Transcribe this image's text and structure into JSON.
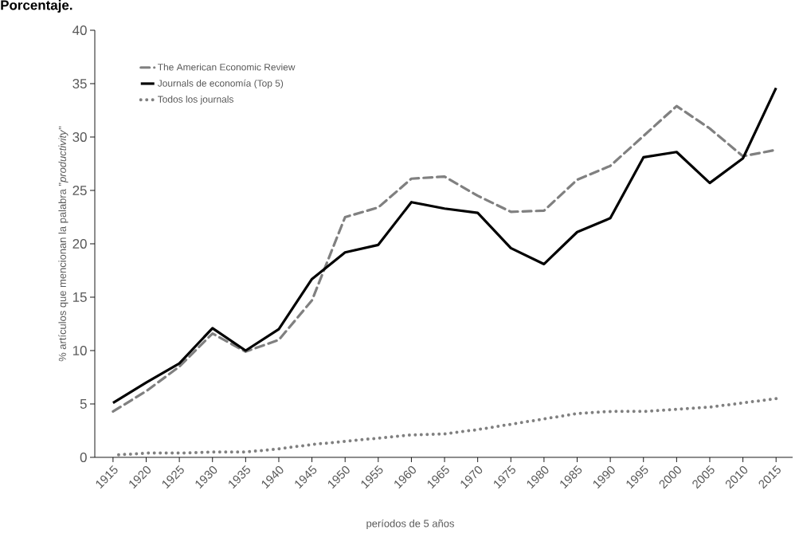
{
  "chart_data": {
    "type": "line",
    "title": "Porcentaje.",
    "xlabel": "períodos de 5 años",
    "ylabel": "% artículos que mencionan la palabra \"*productivity*\"",
    "categories": [
      "1915",
      "1920",
      "1925",
      "1930",
      "1935",
      "1940",
      "1945",
      "1950",
      "1955",
      "1960",
      "1965",
      "1970",
      "1975",
      "1980",
      "1985",
      "1990",
      "1995",
      "2000",
      "2005",
      "2010",
      "2015"
    ],
    "series": [
      {
        "name": "The American Economic Review",
        "color": "#808080",
        "line_style": "dashed",
        "values": [
          4.3,
          6.2,
          8.5,
          11.6,
          9.9,
          11.0,
          14.7,
          22.5,
          23.4,
          26.1,
          26.3,
          24.5,
          23.0,
          23.1,
          26.0,
          27.3,
          30.1,
          32.9,
          30.8,
          28.2,
          28.8
        ]
      },
      {
        "name": "Journals de economía (Top 5)",
        "color": "#000000",
        "line_style": "solid",
        "values": [
          5.1,
          7.0,
          8.8,
          12.1,
          10.0,
          12.0,
          16.7,
          19.2,
          19.9,
          23.9,
          23.3,
          22.9,
          19.6,
          18.1,
          21.1,
          22.4,
          28.1,
          28.6,
          25.7,
          28.0,
          34.6
        ]
      },
      {
        "name": "Todos los journals",
        "color": "#808080",
        "line_style": "dotted",
        "values": [
          0.2,
          0.4,
          0.4,
          0.5,
          0.5,
          0.8,
          1.2,
          1.5,
          1.8,
          2.1,
          2.2,
          2.6,
          3.1,
          3.6,
          4.1,
          4.3,
          4.3,
          4.5,
          4.7,
          5.1,
          5.5
        ]
      }
    ],
    "ylim": [
      0,
      40
    ],
    "yticks": [
      0,
      5,
      10,
      15,
      20,
      25,
      30,
      35,
      40
    ],
    "legend": "top left",
    "marker": "none"
  }
}
